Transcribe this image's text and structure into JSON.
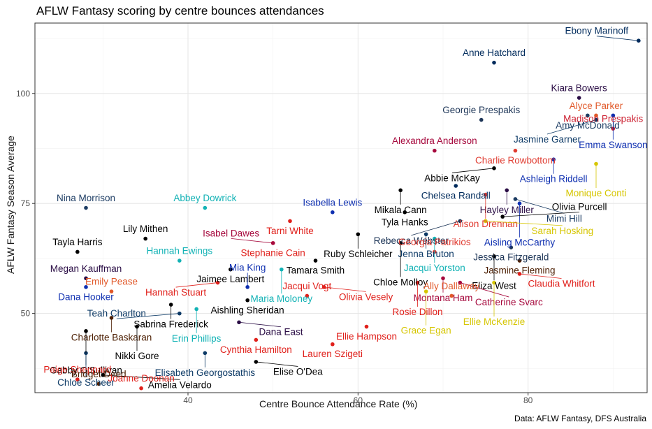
{
  "title": "AFLW Fantasy scoring by centre bounces attendances",
  "caption": "Data: AFLW Fantasy, DFS Australia",
  "chart_data": {
    "type": "scatter",
    "xlabel": "Centre Bounce Attendance Rate (%)",
    "ylabel": "AFLW Fantasy Season Average",
    "xlim": [
      22,
      94
    ],
    "ylim": [
      32,
      116
    ],
    "xticks": [
      40,
      60,
      80
    ],
    "yticks": [
      50,
      75,
      100
    ],
    "grid": true,
    "points": [
      {
        "name": "Ebony Marinoff",
        "x": 93,
        "y": 112,
        "color": "#002b5c"
      },
      {
        "name": "Anne Hatchard",
        "x": 76,
        "y": 107,
        "color": "#002b5c"
      },
      {
        "name": "Kiara Bowers",
        "x": 86,
        "y": 99,
        "color": "#2a0d45"
      },
      {
        "name": "Alyce Parker",
        "x": 88,
        "y": 95,
        "color": "#e1592a"
      },
      {
        "name": "Amy McDonald",
        "x": 87,
        "y": 95,
        "color": "#1c3c63"
      },
      {
        "name": "Emma Swanson",
        "x": 90,
        "y": 95,
        "color": "#0e2fb0"
      },
      {
        "name": "Jasmine Garner",
        "x": 88,
        "y": 94,
        "color": "#0d3a66"
      },
      {
        "name": "Georgie Prespakis",
        "x": 74.5,
        "y": 94,
        "color": "#1d3557"
      },
      {
        "name": "Madison Prespakis",
        "x": 90,
        "y": 92,
        "color": "#cc2031"
      },
      {
        "name": "Alexandra Anderson",
        "x": 69,
        "y": 87,
        "color": "#a6093d"
      },
      {
        "name": "Charlie Rowbottom",
        "x": 78.5,
        "y": 87,
        "color": "#e03c31"
      },
      {
        "name": "Abbie McKay",
        "x": 76,
        "y": 83,
        "color": "#000000"
      },
      {
        "name": "Monique Conti",
        "x": 88,
        "y": 84,
        "color": "#d6c600"
      },
      {
        "name": "Ashleigh Riddell",
        "x": 83,
        "y": 85,
        "color": "#0e2fb0"
      },
      {
        "name": "Mikala Cann",
        "x": 65,
        "y": 78,
        "color": "#000000"
      },
      {
        "name": "Chelsea Randall",
        "x": 71.5,
        "y": 79,
        "color": "#002b5c"
      },
      {
        "name": "Hayley Miller",
        "x": 77.5,
        "y": 78,
        "color": "#2a0d45"
      },
      {
        "name": "Mimi Hill",
        "x": 78.5,
        "y": 76,
        "color": "#1c3c63"
      },
      {
        "name": "Alison Drennan",
        "x": 75,
        "y": 77,
        "color": "#e03c31"
      },
      {
        "name": "Tyla Hanks",
        "x": 65.5,
        "y": 73,
        "color": "#000000"
      },
      {
        "name": "Aisling McCarthy",
        "x": 79,
        "y": 75,
        "color": "#0e2fb0"
      },
      {
        "name": "Nina Morrison",
        "x": 28,
        "y": 74,
        "color": "#1c3c63"
      },
      {
        "name": "Abbey Dowrick",
        "x": 42,
        "y": 74,
        "color": "#12b2b5"
      },
      {
        "name": "Isabella Lewis",
        "x": 57,
        "y": 73,
        "color": "#0e2fb0"
      },
      {
        "name": "Rebecca Webster",
        "x": 72,
        "y": 71,
        "color": "#1d3557"
      },
      {
        "name": "Olivia Purcell",
        "x": 77,
        "y": 72,
        "color": "#000000"
      },
      {
        "name": "Tarni White",
        "x": 52,
        "y": 71,
        "color": "#e0201b"
      },
      {
        "name": "Ruby Schleicher",
        "x": 60,
        "y": 68,
        "color": "#000000"
      },
      {
        "name": "Sarah Hosking",
        "x": 75,
        "y": 71,
        "color": "#d6c600"
      },
      {
        "name": "Jenna Bruton",
        "x": 68,
        "y": 68,
        "color": "#0d3a66"
      },
      {
        "name": "Lily Mithen",
        "x": 35,
        "y": 67,
        "color": "#000000"
      },
      {
        "name": "Stephanie Cain",
        "x": 50,
        "y": 66,
        "color": "#e0201b"
      },
      {
        "name": "Isabel Dawes",
        "x": 50,
        "y": 66,
        "color": "#a6093d"
      },
      {
        "name": "Chloe Molloy",
        "x": 65,
        "y": 66,
        "color": "#000000"
      },
      {
        "name": "Jacqui Yorston",
        "x": 69,
        "y": 67,
        "color": "#12b2b5"
      },
      {
        "name": "Jessica Fitzgerald",
        "x": 78,
        "y": 65,
        "color": "#1d3557"
      },
      {
        "name": "Tayla Harris",
        "x": 27,
        "y": 64,
        "color": "#000000"
      },
      {
        "name": "Hannah Ewings",
        "x": 39,
        "y": 62,
        "color": "#12b2b5"
      },
      {
        "name": "Georgia Patrikios",
        "x": 69,
        "y": 64,
        "color": "#e03c31"
      },
      {
        "name": "Jaimee Lambert",
        "x": 45,
        "y": 60,
        "color": "#000000"
      },
      {
        "name": "Tamara Smith",
        "x": 55,
        "y": 62,
        "color": "#000000"
      },
      {
        "name": "Maria Moloney",
        "x": 51,
        "y": 60,
        "color": "#12b2b5"
      },
      {
        "name": "Jasmine Fleming",
        "x": 79,
        "y": 62,
        "color": "#4d2004"
      },
      {
        "name": "Eliza West",
        "x": 76,
        "y": 63,
        "color": "#000000"
      },
      {
        "name": "Montana Ham",
        "x": 70,
        "y": 58,
        "color": "#a6093d"
      },
      {
        "name": "Claudia Whitfort",
        "x": 79,
        "y": 59,
        "color": "#e0201b"
      },
      {
        "name": "Megan Kauffman",
        "x": 28,
        "y": 58,
        "color": "#2a0d45"
      },
      {
        "name": "Hannah Stuart",
        "x": 43.5,
        "y": 57,
        "color": "#e0201b"
      },
      {
        "name": "Olivia Vesely",
        "x": 56,
        "y": 56,
        "color": "#e0201b"
      },
      {
        "name": "Rosie Dillon",
        "x": 67,
        "y": 57,
        "color": "#e0201b"
      },
      {
        "name": "Catherine Svarc",
        "x": 72,
        "y": 57,
        "color": "#a6093d"
      },
      {
        "name": "Ellie McKenzie",
        "x": 76,
        "y": 57,
        "color": "#d6c600"
      },
      {
        "name": "Dana Hooker",
        "x": 28,
        "y": 56,
        "color": "#0e2fb0"
      },
      {
        "name": "Mia King",
        "x": 47,
        "y": 56,
        "color": "#0e2fb0"
      },
      {
        "name": "Sabrina Frederick",
        "x": 38,
        "y": 52,
        "color": "#000000"
      },
      {
        "name": "Erin Phillips",
        "x": 41,
        "y": 51,
        "color": "#12b2b5"
      },
      {
        "name": "Grace Egan",
        "x": 68,
        "y": 55,
        "color": "#d6c600"
      },
      {
        "name": "Ally Dallaway",
        "x": 71,
        "y": 54,
        "color": "#e1592a"
      },
      {
        "name": "Jacqui Vogt",
        "x": 54,
        "y": 54,
        "color": "#e0201b"
      },
      {
        "name": "Emily Pease",
        "x": 31,
        "y": 55,
        "color": "#e1592a"
      },
      {
        "name": "Dana East",
        "x": 46,
        "y": 48,
        "color": "#2a0d45"
      },
      {
        "name": "Aishling Sheridan",
        "x": 47,
        "y": 53,
        "color": "#000000"
      },
      {
        "name": "Charlotte Baskaran",
        "x": 31,
        "y": 49,
        "color": "#4d2004"
      },
      {
        "name": "Teah Charlton",
        "x": 39,
        "y": 50,
        "color": "#0d3a66"
      },
      {
        "name": "Ellie Hampson",
        "x": 61,
        "y": 47,
        "color": "#e0201b"
      },
      {
        "name": "Cynthia Hamilton",
        "x": 48,
        "y": 44,
        "color": "#e0201b"
      },
      {
        "name": "Gabby O'Sullivan",
        "x": 28,
        "y": 46,
        "color": "#000000"
      },
      {
        "name": "Nikki Gore",
        "x": 34,
        "y": 47,
        "color": "#000000"
      },
      {
        "name": "Lauren Szigeti",
        "x": 57,
        "y": 43,
        "color": "#e0201b"
      },
      {
        "name": "Chloe Scheer",
        "x": 28,
        "y": 41,
        "color": "#0d3a66"
      },
      {
        "name": "Elisabeth Georgostathis",
        "x": 42,
        "y": 41,
        "color": "#0d3a66"
      },
      {
        "name": "Elise O'Dea",
        "x": 48,
        "y": 39,
        "color": "#000000"
      },
      {
        "name": "Paige Sheppard",
        "x": 27,
        "y": 35,
        "color": "#e0201b"
      },
      {
        "name": "Amelia Velardo",
        "x": 30,
        "y": 36,
        "color": "#000000"
      },
      {
        "name": "Bridget Deed",
        "x": 29.5,
        "y": 34,
        "color": "#4d2004"
      },
      {
        "name": "Joanne Doonan",
        "x": 34.5,
        "y": 33,
        "color": "#e0201b"
      }
    ]
  }
}
